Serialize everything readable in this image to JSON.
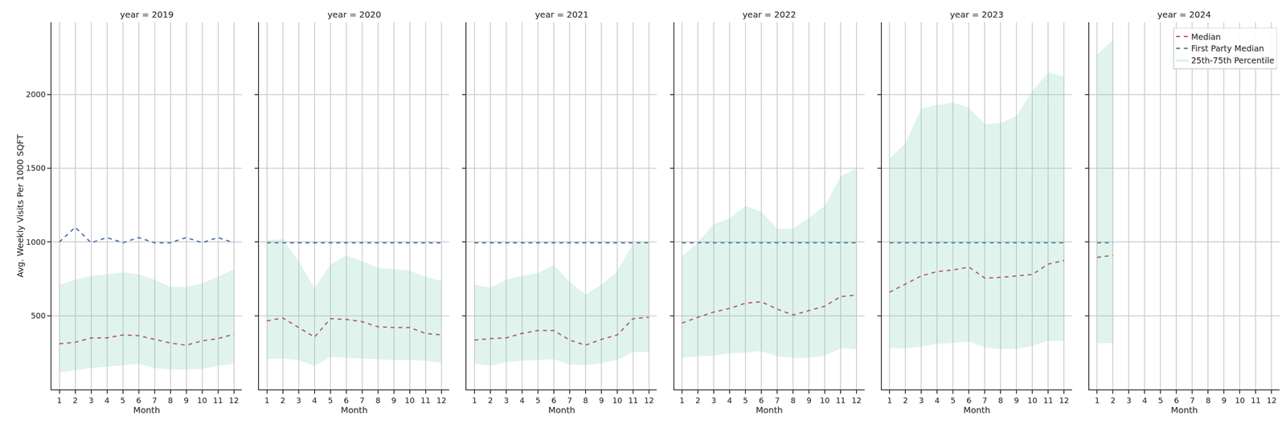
{
  "chart_data": [
    {
      "type": "line",
      "title": "year = 2019",
      "x_label": "Month",
      "y_label": "Avg. Weekly Visits Per 1000 SQFT",
      "x": [
        1,
        2,
        3,
        4,
        5,
        6,
        7,
        8,
        9,
        10,
        11,
        12
      ],
      "series": [
        {
          "name": "Median",
          "type": "line",
          "color": "#c44e52",
          "line_style": "dashed",
          "values": [
            310,
            320,
            350,
            350,
            370,
            365,
            340,
            315,
            300,
            330,
            345,
            375
          ]
        },
        {
          "name": "First Party Median",
          "type": "line",
          "color": "#4c72b0",
          "line_style": "dashed",
          "values": [
            1000,
            1100,
            995,
            1030,
            995,
            1030,
            995,
            995,
            1030,
            995,
            1030,
            995
          ]
        },
        {
          "name": "25th-75th Percentile",
          "type": "band",
          "color": "#66c2a5",
          "lower": [
            115,
            130,
            145,
            155,
            165,
            175,
            145,
            135,
            135,
            140,
            160,
            175
          ],
          "upper": [
            710,
            745,
            770,
            780,
            795,
            780,
            745,
            695,
            695,
            720,
            765,
            815
          ]
        }
      ],
      "xlim": [
        0.5,
        12.5
      ],
      "xticks": [
        1,
        2,
        3,
        4,
        5,
        6,
        7,
        8,
        9,
        10,
        11,
        12
      ],
      "ylim": [
        0,
        2490
      ],
      "yticks": [
        500,
        1000,
        1500,
        2000
      ],
      "grid": true
    },
    {
      "type": "line",
      "title": "year = 2020",
      "x_label": "Month",
      "x": [
        1,
        2,
        3,
        4,
        5,
        6,
        7,
        8,
        9,
        10,
        11,
        12
      ],
      "series": [
        {
          "name": "Median",
          "type": "line",
          "color": "#c44e52",
          "line_style": "dashed",
          "values": [
            465,
            485,
            420,
            355,
            480,
            475,
            460,
            425,
            420,
            420,
            380,
            370
          ]
        },
        {
          "name": "First Party Median",
          "type": "line",
          "color": "#4c72b0",
          "line_style": "dashed",
          "values": [
            995,
            995,
            995,
            995,
            995,
            995,
            995,
            995,
            995,
            995,
            995,
            995
          ]
        },
        {
          "name": "25th-75th Percentile",
          "type": "band",
          "color": "#66c2a5",
          "lower": [
            205,
            210,
            200,
            160,
            220,
            215,
            210,
            205,
            200,
            200,
            195,
            180
          ],
          "upper": [
            1010,
            1020,
            870,
            685,
            845,
            910,
            870,
            825,
            815,
            805,
            765,
            735
          ]
        }
      ],
      "xlim": [
        0.5,
        12.5
      ],
      "xticks": [
        1,
        2,
        3,
        4,
        5,
        6,
        7,
        8,
        9,
        10,
        11,
        12
      ],
      "ylim": [
        0,
        2490
      ],
      "yticks": [
        500,
        1000,
        1500,
        2000
      ],
      "grid": true,
      "tick_labels": "x"
    },
    {
      "type": "line",
      "title": "year = 2021",
      "x_label": "Month",
      "x": [
        1,
        2,
        3,
        4,
        5,
        6,
        7,
        8,
        9,
        10,
        11,
        12
      ],
      "series": [
        {
          "name": "Median",
          "type": "line",
          "color": "#c44e52",
          "line_style": "dashed",
          "values": [
            335,
            345,
            350,
            380,
            400,
            400,
            335,
            300,
            340,
            370,
            480,
            490
          ]
        },
        {
          "name": "First Party Median",
          "type": "line",
          "color": "#4c72b0",
          "line_style": "dashed",
          "values": [
            995,
            995,
            995,
            995,
            995,
            995,
            995,
            995,
            995,
            995,
            995,
            995
          ]
        },
        {
          "name": "25th-75th Percentile",
          "type": "band",
          "color": "#66c2a5",
          "lower": [
            175,
            160,
            185,
            195,
            200,
            205,
            170,
            165,
            180,
            200,
            255,
            255
          ],
          "upper": [
            710,
            690,
            745,
            770,
            790,
            845,
            730,
            645,
            710,
            800,
            990,
            1000
          ]
        }
      ],
      "xlim": [
        0.5,
        12.5
      ],
      "xticks": [
        1,
        2,
        3,
        4,
        5,
        6,
        7,
        8,
        9,
        10,
        11,
        12
      ],
      "ylim": [
        0,
        2490
      ],
      "yticks": [
        500,
        1000,
        1500,
        2000
      ],
      "grid": true,
      "tick_labels": "x"
    },
    {
      "type": "line",
      "title": "year = 2022",
      "x_label": "Month",
      "x": [
        1,
        2,
        3,
        4,
        5,
        6,
        7,
        8,
        9,
        10,
        11,
        12
      ],
      "series": [
        {
          "name": "Median",
          "type": "line",
          "color": "#c44e52",
          "line_style": "dashed",
          "values": [
            450,
            490,
            525,
            550,
            585,
            595,
            545,
            505,
            535,
            565,
            630,
            640
          ]
        },
        {
          "name": "First Party Median",
          "type": "line",
          "color": "#4c72b0",
          "line_style": "dashed",
          "values": [
            995,
            995,
            995,
            995,
            995,
            995,
            995,
            995,
            995,
            995,
            995,
            995
          ]
        },
        {
          "name": "25th-75th Percentile",
          "type": "band",
          "color": "#66c2a5",
          "lower": [
            215,
            225,
            230,
            245,
            250,
            260,
            225,
            215,
            215,
            230,
            280,
            275
          ],
          "upper": [
            900,
            1000,
            1120,
            1160,
            1245,
            1205,
            1090,
            1090,
            1165,
            1245,
            1445,
            1500
          ]
        }
      ],
      "xlim": [
        0.5,
        12.5
      ],
      "xticks": [
        1,
        2,
        3,
        4,
        5,
        6,
        7,
        8,
        9,
        10,
        11,
        12
      ],
      "ylim": [
        0,
        2490
      ],
      "yticks": [
        500,
        1000,
        1500,
        2000
      ],
      "grid": true,
      "tick_labels": "x"
    },
    {
      "type": "line",
      "title": "year = 2023",
      "x_label": "Month",
      "x": [
        1,
        2,
        3,
        4,
        5,
        6,
        7,
        8,
        9,
        10,
        11,
        12
      ],
      "series": [
        {
          "name": "Median",
          "type": "line",
          "color": "#c44e52",
          "line_style": "dashed",
          "values": [
            660,
            715,
            770,
            800,
            810,
            830,
            755,
            760,
            770,
            780,
            850,
            875
          ]
        },
        {
          "name": "First Party Median",
          "type": "line",
          "color": "#4c72b0",
          "line_style": "dashed",
          "values": [
            995,
            995,
            995,
            995,
            995,
            995,
            995,
            995,
            995,
            995,
            995,
            995
          ]
        },
        {
          "name": "25th-75th Percentile",
          "type": "band",
          "color": "#66c2a5",
          "lower": [
            280,
            280,
            290,
            310,
            315,
            325,
            285,
            275,
            275,
            295,
            330,
            330
          ],
          "upper": [
            1565,
            1670,
            1905,
            1930,
            1945,
            1910,
            1800,
            1805,
            1855,
            2025,
            2150,
            2120
          ]
        }
      ],
      "xlim": [
        0.5,
        12.5
      ],
      "xticks": [
        1,
        2,
        3,
        4,
        5,
        6,
        7,
        8,
        9,
        10,
        11,
        12
      ],
      "ylim": [
        0,
        2490
      ],
      "yticks": [
        500,
        1000,
        1500,
        2000
      ],
      "grid": true,
      "tick_labels": "x"
    },
    {
      "type": "line",
      "title": "year = 2024",
      "x_label": "Month",
      "x": [
        1,
        2
      ],
      "series": [
        {
          "name": "Median",
          "type": "line",
          "color": "#c44e52",
          "line_style": "dashed",
          "values": [
            895,
            910
          ]
        },
        {
          "name": "First Party Median",
          "type": "line",
          "color": "#4c72b0",
          "line_style": "dashed",
          "values": [
            995,
            995
          ]
        },
        {
          "name": "25th-75th Percentile",
          "type": "band",
          "color": "#66c2a5",
          "lower": [
            315,
            315
          ],
          "upper": [
            2270,
            2370
          ]
        }
      ],
      "xlim": [
        0.5,
        12.5
      ],
      "xticks": [
        1,
        2,
        3,
        4,
        5,
        6,
        7,
        8,
        9,
        10,
        11,
        12
      ],
      "ylim": [
        0,
        2490
      ],
      "yticks": [
        500,
        1000,
        1500,
        2000
      ],
      "grid": true,
      "tick_labels": "x",
      "legend": "upper right"
    }
  ]
}
